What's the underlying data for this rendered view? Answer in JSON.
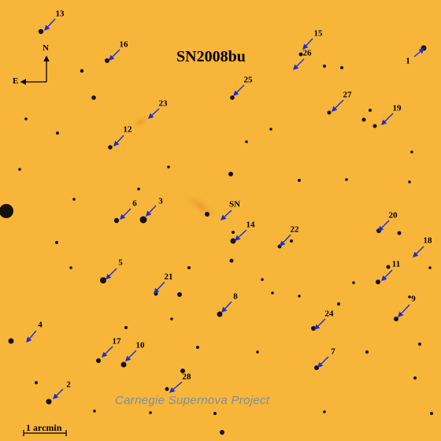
{
  "title": "SN2008bu",
  "credit": "Carnegie Supernova Project",
  "scale_bar_label": "1 arcmin",
  "compass": {
    "north": "N",
    "east": "E"
  },
  "colors": {
    "background": "#f7b53a",
    "arrow": "#1a2fd6",
    "star": "#151008",
    "credit": "#7d8fa3"
  },
  "labels": [
    "SN",
    "1",
    "2",
    "3",
    "4",
    "5",
    "6",
    "7",
    "8",
    "9",
    "10",
    "11",
    "12",
    "13",
    "14",
    "15",
    "16",
    "17",
    "18",
    "19",
    "20",
    "21",
    "22",
    "23",
    "24",
    "25",
    "26",
    "27",
    "28"
  ]
}
